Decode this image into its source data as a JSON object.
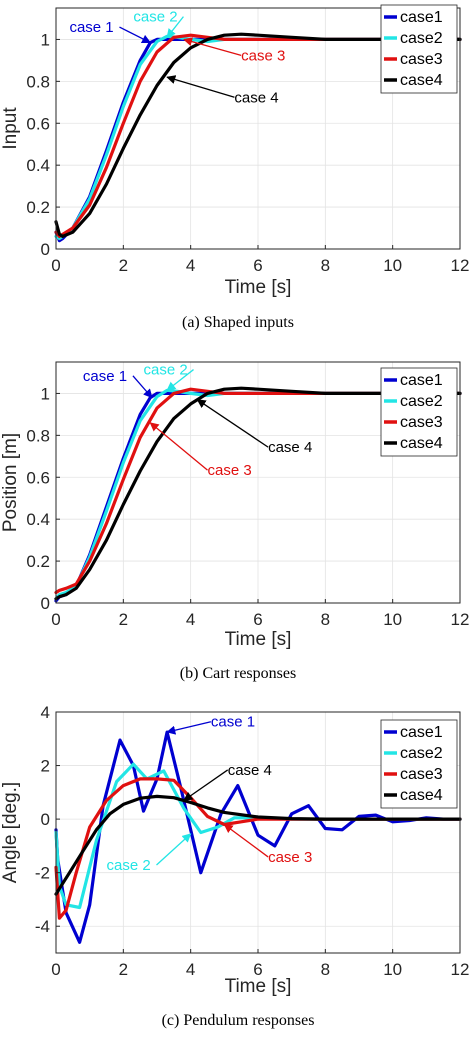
{
  "chart_data": [
    {
      "type": "line",
      "caption": "(a) Shaped inputs",
      "xlabel": "Time [s]",
      "ylabel": "Input",
      "xlim": [
        0,
        12
      ],
      "ylim": [
        0,
        1.15
      ],
      "xticks": [
        0,
        2,
        4,
        6,
        8,
        10,
        12
      ],
      "yticks": [
        0,
        0.2,
        0.4,
        0.6,
        0.8,
        1
      ],
      "grid": true,
      "legend": "top-right",
      "series": [
        {
          "name": "case1",
          "color": "#0000d0",
          "x": [
            0,
            0.1,
            0.2,
            0.5,
            1.0,
            1.5,
            2.0,
            2.5,
            2.8,
            3.0,
            3.4,
            4.0,
            5.0,
            6.0,
            12
          ],
          "y": [
            0.08,
            0.04,
            0.05,
            0.1,
            0.25,
            0.47,
            0.7,
            0.9,
            0.985,
            1.0,
            1.0,
            1.0,
            1.0,
            1.0,
            1.0
          ]
        },
        {
          "name": "case2",
          "color": "#22e5e5",
          "x": [
            0,
            0.1,
            0.2,
            0.5,
            1.0,
            1.5,
            2.0,
            2.5,
            3.0,
            3.3,
            3.6,
            4.0,
            4.5,
            5.0,
            6.0,
            12
          ],
          "y": [
            0.06,
            0.05,
            0.06,
            0.1,
            0.24,
            0.45,
            0.68,
            0.88,
            0.99,
            1.015,
            1.01,
            1.0,
            0.99,
            1.0,
            1.0,
            1.0
          ]
        },
        {
          "name": "case3",
          "color": "#e01010",
          "x": [
            0,
            0.1,
            0.2,
            0.5,
            1.0,
            1.5,
            2.0,
            2.5,
            3.0,
            3.5,
            4.0,
            4.5,
            5.0,
            6.0,
            8.0,
            12
          ],
          "y": [
            0.08,
            0.06,
            0.07,
            0.1,
            0.21,
            0.39,
            0.6,
            0.8,
            0.94,
            1.01,
            1.02,
            1.01,
            1.0,
            1.0,
            1.0,
            1.0
          ]
        },
        {
          "name": "case4",
          "color": "#000000",
          "x": [
            0,
            0.1,
            0.2,
            0.5,
            1.0,
            1.5,
            2.0,
            2.5,
            3.0,
            3.5,
            4.0,
            4.5,
            5.0,
            5.5,
            6.0,
            7.0,
            8.0,
            10.0,
            12
          ],
          "y": [
            0.13,
            0.07,
            0.06,
            0.08,
            0.17,
            0.31,
            0.48,
            0.64,
            0.78,
            0.89,
            0.96,
            1.0,
            1.02,
            1.025,
            1.02,
            1.01,
            1.0,
            1.0,
            1.0
          ]
        }
      ],
      "annotations": [
        {
          "text": "case 2",
          "color": "#22e5e5",
          "text_at": [
            2.3,
            1.085
          ],
          "arrow_to": [
            3.3,
            1.01
          ]
        },
        {
          "text": "case 1",
          "color": "#0000d0",
          "text_at": [
            0.4,
            1.035
          ],
          "arrow_to": [
            2.8,
            0.985
          ]
        },
        {
          "text": "case 3",
          "color": "#e01010",
          "text_at": [
            5.5,
            0.9
          ],
          "arrow_to": [
            3.8,
            1.0
          ]
        },
        {
          "text": "case 4",
          "color": "#000000",
          "text_at": [
            5.3,
            0.7
          ],
          "arrow_to": [
            3.3,
            0.82
          ]
        }
      ]
    },
    {
      "type": "line",
      "caption": "(b) Cart responses",
      "xlabel": "Time [s]",
      "ylabel": "Position [m]",
      "xlim": [
        0,
        12
      ],
      "ylim": [
        0,
        1.15
      ],
      "xticks": [
        0,
        2,
        4,
        6,
        8,
        10,
        12
      ],
      "yticks": [
        0,
        0.2,
        0.4,
        0.6,
        0.8,
        1
      ],
      "grid": true,
      "legend": "top-right",
      "series": [
        {
          "name": "case1",
          "color": "#0000d0",
          "x": [
            0,
            0.1,
            0.3,
            0.6,
            1.0,
            1.5,
            2.0,
            2.5,
            2.8,
            3.0,
            3.4,
            4.0,
            5.0,
            6.0,
            12
          ],
          "y": [
            0.01,
            0.03,
            0.04,
            0.08,
            0.23,
            0.46,
            0.69,
            0.9,
            0.98,
            1.0,
            1.0,
            1.0,
            1.0,
            1.0,
            1.0
          ]
        },
        {
          "name": "case2",
          "color": "#22e5e5",
          "x": [
            0,
            0.1,
            0.3,
            0.6,
            1.0,
            1.5,
            2.0,
            2.5,
            3.0,
            3.3,
            3.6,
            4.0,
            4.5,
            5.0,
            6.0,
            12
          ],
          "y": [
            0.02,
            0.04,
            0.05,
            0.08,
            0.22,
            0.44,
            0.67,
            0.87,
            0.985,
            1.015,
            1.01,
            1.0,
            0.99,
            1.0,
            1.0,
            1.0
          ]
        },
        {
          "name": "case3",
          "color": "#e01010",
          "x": [
            0,
            0.1,
            0.3,
            0.6,
            1.0,
            1.5,
            2.0,
            2.5,
            3.0,
            3.5,
            4.0,
            4.5,
            5.0,
            6.0,
            8.0,
            12
          ],
          "y": [
            0.05,
            0.06,
            0.07,
            0.09,
            0.2,
            0.38,
            0.59,
            0.79,
            0.93,
            1.0,
            1.02,
            1.01,
            1.0,
            1.0,
            1.0,
            1.0
          ]
        },
        {
          "name": "case4",
          "color": "#000000",
          "x": [
            0,
            0.1,
            0.3,
            0.6,
            1.0,
            1.5,
            2.0,
            2.5,
            3.0,
            3.5,
            4.0,
            4.5,
            5.0,
            5.5,
            6.0,
            7.0,
            8.0,
            10.0,
            12
          ],
          "y": [
            0.02,
            0.03,
            0.04,
            0.07,
            0.16,
            0.3,
            0.47,
            0.63,
            0.77,
            0.88,
            0.95,
            1.0,
            1.02,
            1.025,
            1.02,
            1.01,
            1.0,
            1.0,
            1.0
          ]
        }
      ],
      "annotations": [
        {
          "text": "case 1",
          "color": "#0000d0",
          "text_at": [
            0.8,
            1.06
          ],
          "arrow_to": [
            2.85,
            0.98
          ]
        },
        {
          "text": "case 2",
          "color": "#22e5e5",
          "text_at": [
            2.6,
            1.09
          ],
          "arrow_to": [
            3.3,
            1.015
          ]
        },
        {
          "text": "case 4",
          "color": "#000000",
          "text_at": [
            6.3,
            0.72
          ],
          "arrow_to": [
            4.2,
            0.97
          ]
        },
        {
          "text": "case 3",
          "color": "#e01010",
          "text_at": [
            4.5,
            0.61
          ],
          "arrow_to": [
            2.8,
            0.86
          ]
        }
      ]
    },
    {
      "type": "line",
      "caption": "(c) Pendulum responses",
      "xlabel": "Time [s]",
      "ylabel": "Angle [deg.]",
      "xlim": [
        0,
        12
      ],
      "ylim": [
        -5,
        4
      ],
      "xticks": [
        0,
        2,
        4,
        6,
        8,
        10,
        12
      ],
      "yticks": [
        -4,
        -2,
        0,
        2,
        4
      ],
      "grid": true,
      "legend": "top-right",
      "series": [
        {
          "name": "case1",
          "color": "#0000d0",
          "x": [
            0,
            0.05,
            0.3,
            0.7,
            1.0,
            1.4,
            1.9,
            2.3,
            2.6,
            3.0,
            3.3,
            3.7,
            4.3,
            4.9,
            5.4,
            6.0,
            6.5,
            7.0,
            7.5,
            8.0,
            8.5,
            9.0,
            9.5,
            10.0,
            10.5,
            11.0,
            11.5,
            12.0
          ],
          "y": [
            -0.4,
            -1.5,
            -3.5,
            -4.6,
            -3.2,
            0.5,
            2.95,
            2.0,
            0.3,
            1.5,
            3.25,
            1.2,
            -2.0,
            0.2,
            1.25,
            -0.6,
            -1.0,
            0.2,
            0.5,
            -0.35,
            -0.4,
            0.1,
            0.15,
            -0.1,
            -0.05,
            0.05,
            0.0,
            0.0
          ]
        },
        {
          "name": "case2",
          "color": "#22e5e5",
          "x": [
            0,
            0.1,
            0.3,
            0.7,
            1.2,
            1.8,
            2.3,
            2.7,
            3.2,
            3.8,
            4.3,
            4.8,
            5.3,
            6.0,
            7.0,
            8.0,
            12.0
          ],
          "y": [
            -0.5,
            -2.5,
            -3.2,
            -3.3,
            -0.8,
            1.4,
            2.05,
            1.5,
            1.8,
            0.4,
            -0.5,
            -0.3,
            0.05,
            0.05,
            0.0,
            0.0,
            0.0
          ]
        },
        {
          "name": "case3",
          "color": "#e01010",
          "x": [
            0,
            0.1,
            0.3,
            0.6,
            1.0,
            1.5,
            2.0,
            2.5,
            3.0,
            3.5,
            4.0,
            4.5,
            5.0,
            5.5,
            6.0,
            6.5,
            7.0,
            8.0,
            12.0
          ],
          "y": [
            -1.8,
            -3.7,
            -3.4,
            -2.0,
            -0.3,
            0.7,
            1.25,
            1.5,
            1.5,
            1.45,
            0.8,
            0.1,
            -0.2,
            -0.1,
            0.0,
            0.0,
            0.0,
            0.0,
            0.0
          ]
        },
        {
          "name": "case4",
          "color": "#000000",
          "x": [
            0,
            0.1,
            0.4,
            0.8,
            1.2,
            1.6,
            2.0,
            2.5,
            3.0,
            3.5,
            4.0,
            4.5,
            5.0,
            6.0,
            7.0,
            8.0,
            12.0
          ],
          "y": [
            -2.8,
            -2.6,
            -2.0,
            -1.2,
            -0.4,
            0.2,
            0.55,
            0.78,
            0.85,
            0.8,
            0.62,
            0.42,
            0.25,
            0.08,
            0.02,
            0.0,
            0.0
          ]
        }
      ],
      "annotations": [
        {
          "text": "case 1",
          "color": "#0000d0",
          "text_at": [
            4.6,
            3.45
          ],
          "arrow_to": [
            3.3,
            3.25
          ]
        },
        {
          "text": "case 4",
          "color": "#000000",
          "text_at": [
            5.1,
            1.65
          ],
          "arrow_to": [
            3.8,
            0.7
          ]
        },
        {
          "text": "case 2",
          "color": "#22e5e5",
          "text_at": [
            1.5,
            -1.9
          ],
          "arrow_to": [
            4.0,
            -0.55
          ]
        },
        {
          "text": "case 3",
          "color": "#e01010",
          "text_at": [
            6.3,
            -1.6
          ],
          "arrow_to": [
            5.0,
            -0.2
          ]
        }
      ]
    }
  ]
}
